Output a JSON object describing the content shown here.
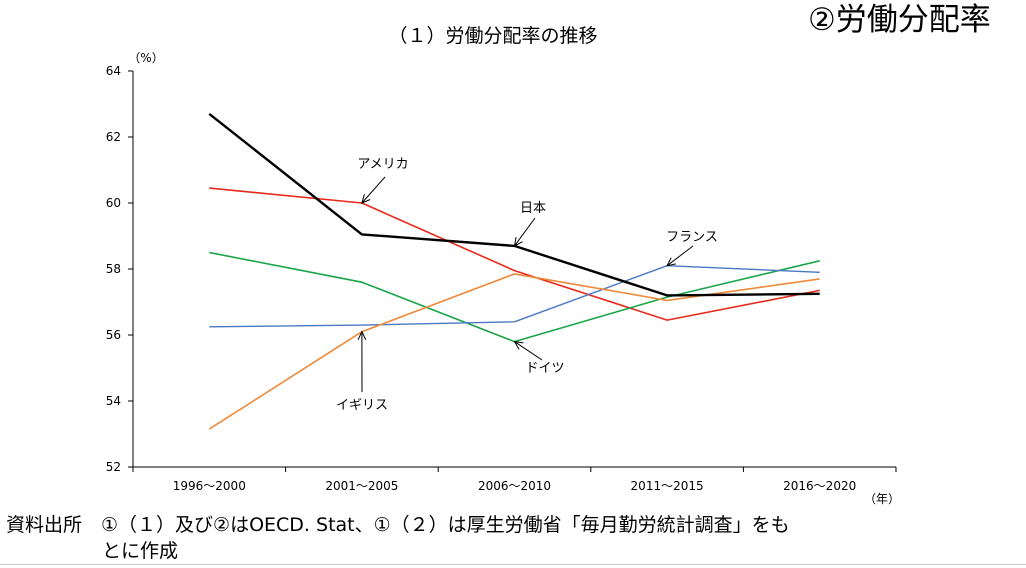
{
  "headline": "②労働分配率",
  "chart_data": {
    "type": "line",
    "title": "（１）労働分配率の推移",
    "ylabel": "（%）",
    "xlabel": "（年）",
    "categories": [
      "1996～2000",
      "2001～2005",
      "2006～2010",
      "2011～2015",
      "2016～2020"
    ],
    "ylim": [
      52,
      64
    ],
    "yticks": [
      52,
      54,
      56,
      58,
      60,
      62,
      64
    ],
    "grid": false,
    "series": [
      {
        "name": "日本",
        "color": "#000000",
        "width": 2.4,
        "values": [
          62.7,
          59.05,
          58.7,
          57.2,
          57.25
        ]
      },
      {
        "name": "アメリカ",
        "color": "#e8291c",
        "width": 1.6,
        "values": [
          60.45,
          60.0,
          57.95,
          56.45,
          57.35
        ]
      },
      {
        "name": "ドイツ",
        "color": "#1aa54a",
        "width": 1.6,
        "values": [
          58.5,
          57.6,
          55.8,
          57.15,
          58.25
        ]
      },
      {
        "name": "フランス",
        "color": "#4a78c2",
        "width": 1.4,
        "values": [
          56.25,
          56.3,
          56.4,
          58.1,
          57.9
        ]
      },
      {
        "name": "イギリス",
        "color": "#ee8a3a",
        "width": 1.6,
        "values": [
          53.15,
          56.1,
          57.85,
          57.05,
          57.7
        ]
      }
    ]
  },
  "source": {
    "line1": "資料出所　①（１）及び②はOECD. Stat、①（２）は厚生労働省「毎月勤労統計調査」をも",
    "line2": "とに作成"
  }
}
